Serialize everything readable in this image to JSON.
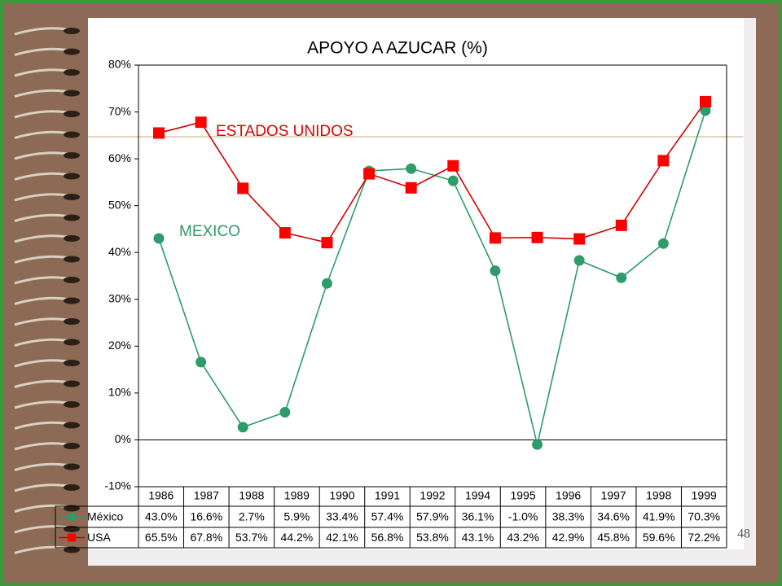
{
  "chart_data": {
    "type": "line",
    "title": "APOYO A AZUCAR (%)",
    "categories": [
      "1986",
      "1987",
      "1988",
      "1989",
      "1990",
      "1991",
      "1992",
      null,
      "1994",
      "1995",
      "1996",
      "1997",
      "1998",
      "1999"
    ],
    "series": [
      {
        "name": "México",
        "color": "#2e9b6a",
        "marker": "circle",
        "values": [
          43.0,
          16.6,
          2.7,
          5.9,
          33.4,
          57.4,
          57.9,
          55.3,
          36.1,
          -1.0,
          38.3,
          34.6,
          41.9,
          70.3
        ],
        "value_labels": [
          "43.0%",
          "16.6%",
          "2.7%",
          "5.9%",
          "33.4%",
          "57.4%",
          "57.9%",
          null,
          "36.1%",
          "-1.0%",
          "38.3%",
          "34.6%",
          "41.9%",
          "70.3%"
        ]
      },
      {
        "name": "USA",
        "color": "#e00000",
        "marker": "square",
        "values": [
          65.5,
          67.8,
          53.7,
          44.2,
          42.1,
          56.8,
          53.8,
          58.5,
          43.1,
          43.2,
          42.9,
          45.8,
          59.6,
          72.2
        ],
        "value_labels": [
          "65.5%",
          "67.8%",
          "53.7%",
          "44.2%",
          "42.1%",
          "56.8%",
          "53.8%",
          null,
          "43.1%",
          "43.2%",
          "42.9%",
          "45.8%",
          "59.6%",
          "72.2%"
        ]
      }
    ],
    "annotations": [
      {
        "text": "ESTADOS UNIDOS",
        "series": 1
      },
      {
        "text": "MEXICO",
        "series": 0
      }
    ],
    "ylim": [
      -10,
      80
    ],
    "yticks": [
      {
        "value": -10,
        "label": "-10%"
      },
      {
        "value": 0,
        "label": "0%"
      },
      {
        "value": 10,
        "label": "10%"
      },
      {
        "value": 20,
        "label": "20%"
      },
      {
        "value": 30,
        "label": "30%"
      },
      {
        "value": 40,
        "label": "40%"
      },
      {
        "value": 50,
        "label": "50%"
      },
      {
        "value": 60,
        "label": "60%"
      },
      {
        "value": 70,
        "label": "70%"
      },
      {
        "value": 80,
        "label": "80%"
      }
    ],
    "grid": false,
    "legend": "table"
  },
  "page_number": "48"
}
